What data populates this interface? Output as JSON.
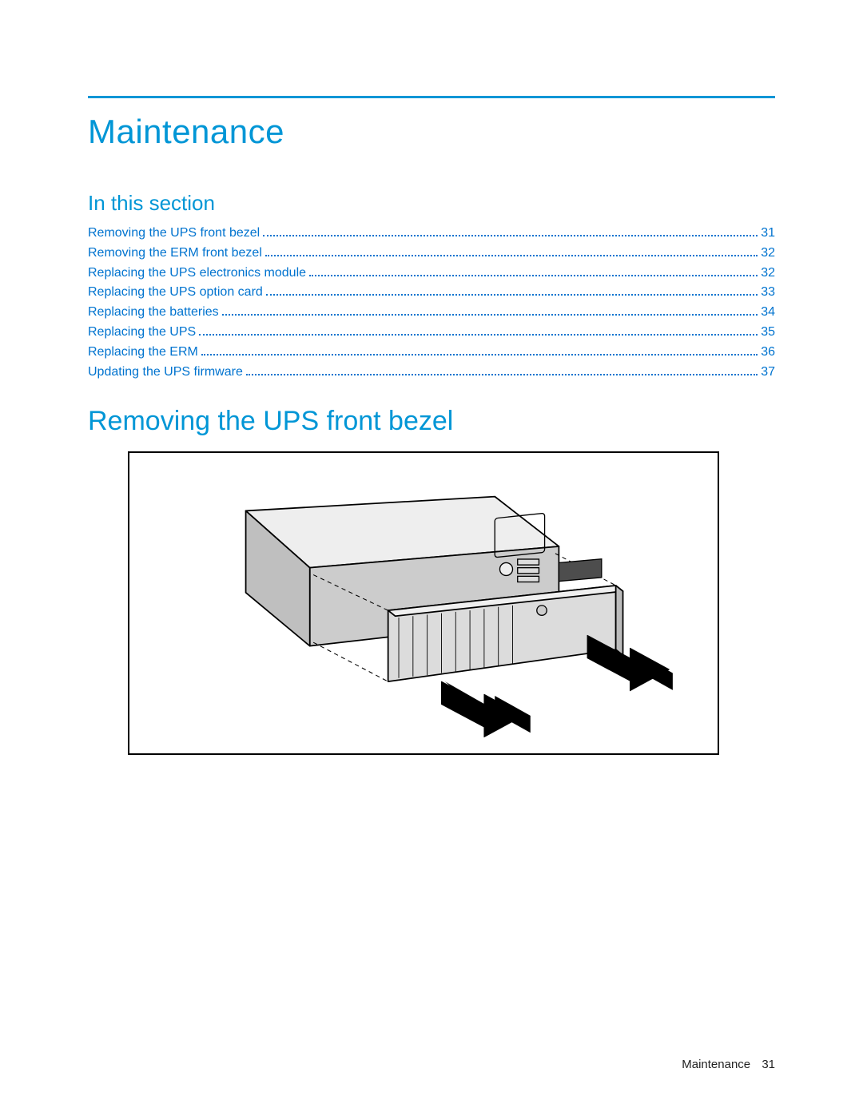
{
  "colors": {
    "rule": "#0096d6",
    "heading": "#0096d6",
    "link": "#0073cf",
    "text": "#000000",
    "background": "#ffffff",
    "figure_border": "#000000"
  },
  "title": "Maintenance",
  "subtitle": "In this section",
  "section_heading": "Removing the UPS front bezel",
  "toc": [
    {
      "label": "Removing the UPS front bezel",
      "page": "31"
    },
    {
      "label": "Removing the ERM front bezel",
      "page": "32"
    },
    {
      "label": "Replacing the UPS electronics module",
      "page": "32"
    },
    {
      "label": "Replacing the UPS option card",
      "page": "33"
    },
    {
      "label": "Replacing the batteries",
      "page": "34"
    },
    {
      "label": "Replacing the UPS",
      "page": "35"
    },
    {
      "label": "Replacing the ERM",
      "page": "36"
    },
    {
      "label": "Updating the UPS firmware",
      "page": "37"
    }
  ],
  "footer": {
    "label": "Maintenance",
    "page": "31"
  },
  "figure": {
    "description": "Line drawing of a rack-mount UPS chassis with its front bezel being pulled forward and off, two large arrows indicating pull direction.",
    "stroke": "#000000",
    "fill_light": "#f5f5f5",
    "fill_mid": "#cccccc",
    "fill_dark": "#4d4d4d",
    "arrow_fill": "#000000"
  }
}
